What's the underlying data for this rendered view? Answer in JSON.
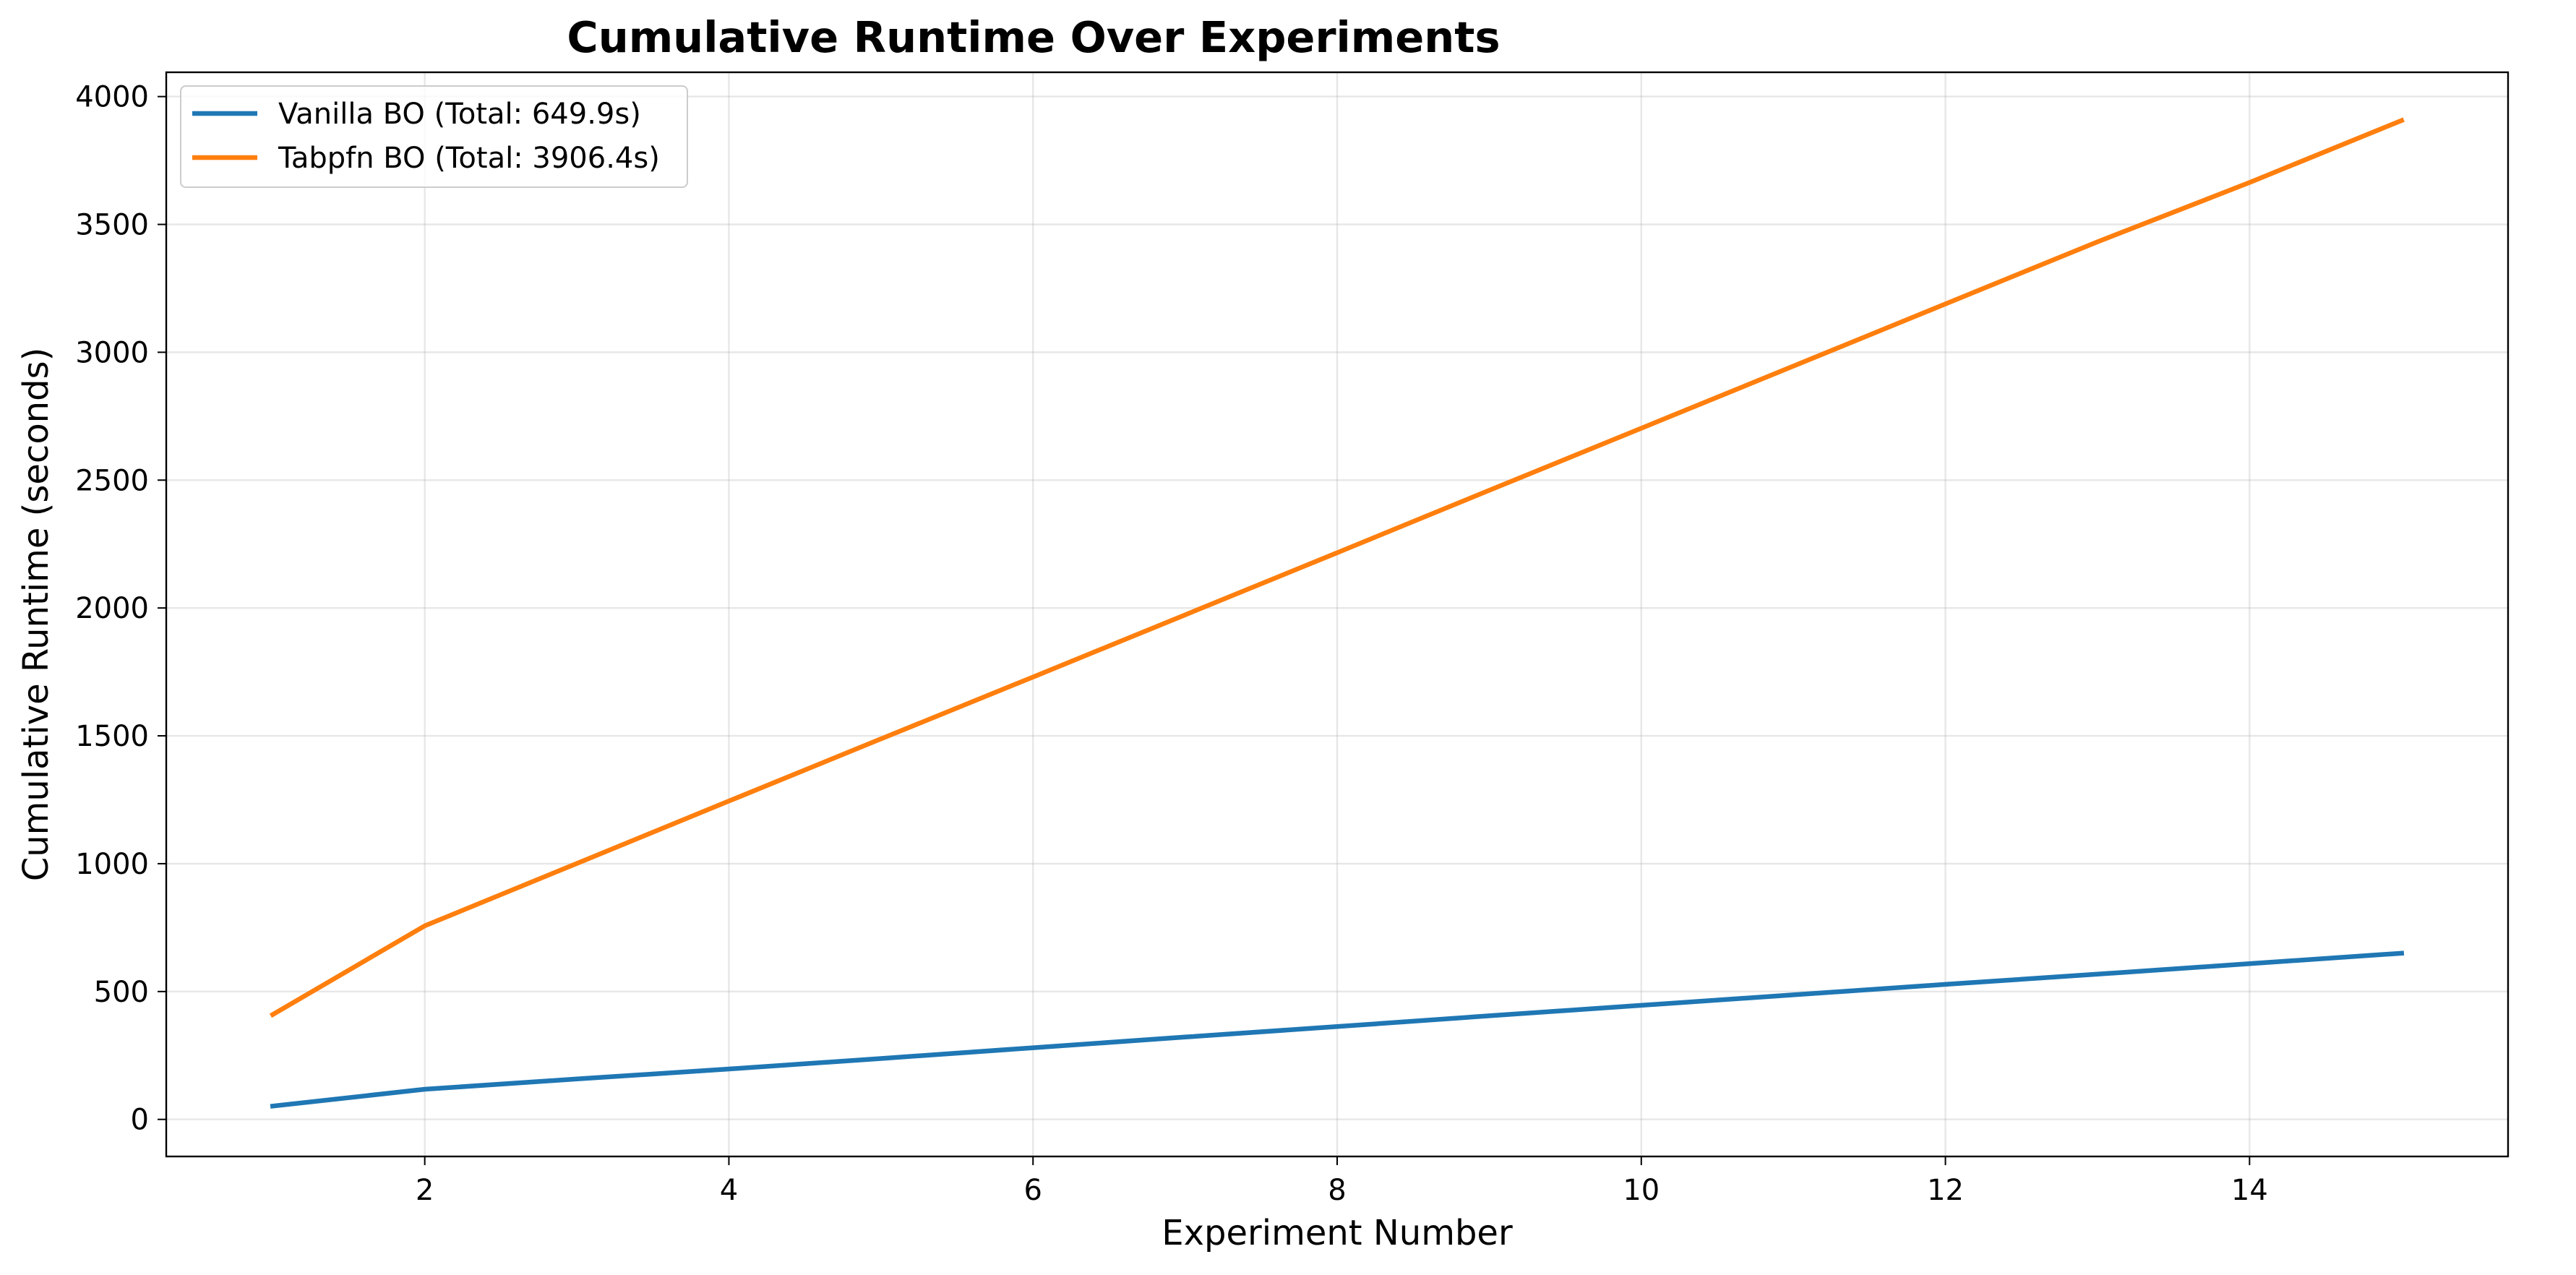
{
  "chart_data": {
    "type": "line",
    "title": "Cumulative Runtime Over Experiments",
    "xlabel": "Experiment Number",
    "ylabel": "Cumulative Runtime (seconds)",
    "xlim": [
      0.3,
      15.7
    ],
    "ylim": [
      -145,
      4095
    ],
    "xticks": [
      2,
      4,
      6,
      8,
      10,
      12,
      14
    ],
    "xtick_labels": [
      "2",
      "4",
      "6",
      "8",
      "10",
      "12",
      "14"
    ],
    "yticks": [
      0,
      500,
      1000,
      1500,
      2000,
      2500,
      3000,
      3500,
      4000
    ],
    "ytick_labels": [
      "0",
      "500",
      "1000",
      "1500",
      "2000",
      "2500",
      "3000",
      "3500",
      "4000"
    ],
    "grid": true,
    "legend_position": "top-left",
    "x": [
      1,
      2,
      3,
      4,
      5,
      6,
      7,
      8,
      9,
      10,
      11,
      12,
      13,
      14,
      15
    ],
    "series": [
      {
        "name": "Vanilla BO (Total: 649.9s)",
        "color": "#1f77b4",
        "values": [
          52,
          118,
          158,
          197,
          238,
          280,
          322,
          363,
          405,
          446,
          487,
          528,
          568,
          609,
          649.9
        ]
      },
      {
        "name": "Tabpfn BO (Total: 3906.4s)",
        "color": "#ff7f0e",
        "values": [
          410,
          757,
          1001,
          1245,
          1488,
          1730,
          1973,
          2216,
          2460,
          2703,
          2946,
          3189,
          3432,
          3664,
          3906.4
        ]
      }
    ]
  }
}
